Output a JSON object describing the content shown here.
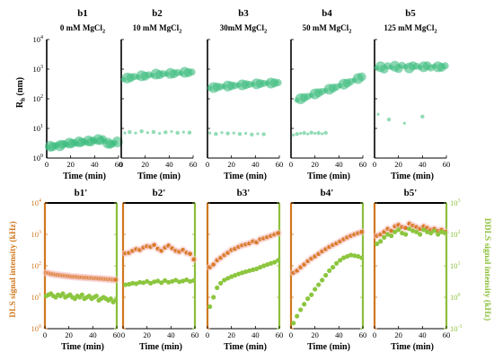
{
  "figure": {
    "top_ylabel_main": "R",
    "top_ylabel_sub": "h",
    "top_ylabel_unit": " (nm)",
    "bottom_ylabel_left": "DLS signal intensity (kHz)",
    "bottom_ylabel_right": "DDLS signal intensity (kHz)",
    "xlabel": "Time (min)",
    "colors": {
      "rh_main": "#3dbd7f",
      "rh_minor": "#6fd09c",
      "dls": "#d87a28",
      "dls_halo": "#f7c9c9",
      "ddls": "#8cc63f",
      "axis_left_bottom": "#d0781f",
      "axis_right_bottom": "#8cbf3a"
    }
  },
  "chart_data": [
    {
      "type": "scatter",
      "id": "b1",
      "title": "b1",
      "subtitle": "0 mM MgCl",
      "subtitle_sub": "2",
      "ylog": true,
      "ylim": [
        1,
        10000
      ],
      "xlim": [
        0,
        60
      ],
      "xticks": [
        0,
        20,
        40,
        60
      ],
      "yticks": [
        "10",
        "10",
        "10",
        "10",
        "10"
      ],
      "ytick_exponents": [
        "0",
        "1",
        "2",
        "3",
        "4"
      ],
      "series": [
        {
          "role": "main",
          "x": [
            1,
            3,
            5,
            7,
            9,
            11,
            13,
            15,
            17,
            19,
            21,
            23,
            25,
            27,
            29,
            31,
            33,
            35,
            37,
            39,
            41,
            43,
            45,
            47,
            49,
            51,
            53,
            55,
            57,
            59
          ],
          "y": [
            2.3,
            2.5,
            2.4,
            2.6,
            2.8,
            2.6,
            2.9,
            3.0,
            2.8,
            3.2,
            3.1,
            3.3,
            3.0,
            3.5,
            3.4,
            3.6,
            3.3,
            3.8,
            3.5,
            4.0,
            3.7,
            4.2,
            3.9,
            4.5,
            3.6,
            3.2,
            2.9,
            3.0,
            3.3,
            3.5
          ]
        }
      ]
    },
    {
      "type": "scatter",
      "id": "b2",
      "title": "b2",
      "subtitle": "10 mM MgCl",
      "subtitle_sub": "2",
      "ylog": true,
      "ylim": [
        1,
        10000
      ],
      "xlim": [
        0,
        60
      ],
      "xticks": [
        0,
        20,
        40,
        60
      ],
      "series": [
        {
          "role": "main",
          "x": [
            2,
            5,
            8,
            11,
            14,
            17,
            20,
            23,
            26,
            29,
            32,
            35,
            38,
            41,
            44,
            47,
            50,
            53,
            56,
            59
          ],
          "y": [
            450,
            500,
            520,
            560,
            540,
            600,
            580,
            640,
            620,
            680,
            650,
            700,
            690,
            720,
            700,
            760,
            730,
            780,
            760,
            800
          ]
        },
        {
          "role": "minor",
          "x": [
            3,
            7,
            12,
            17,
            22,
            27,
            32,
            37,
            42,
            47,
            52,
            57
          ],
          "y": [
            7,
            7.5,
            7,
            8,
            7.2,
            7.6,
            6.8,
            7.4,
            7.8,
            7.1,
            7.5,
            7.2
          ]
        }
      ]
    },
    {
      "type": "scatter",
      "id": "b3",
      "title": "b3",
      "subtitle": "30mM MgCl",
      "subtitle_sub": "2",
      "ylog": true,
      "ylim": [
        1,
        10000
      ],
      "xlim": [
        0,
        60
      ],
      "xticks": [
        0,
        20,
        40,
        60
      ],
      "series": [
        {
          "role": "main",
          "x": [
            2,
            5,
            8,
            11,
            14,
            17,
            20,
            23,
            26,
            29,
            32,
            35,
            38,
            41,
            44,
            47,
            50,
            53,
            56,
            59
          ],
          "y": [
            230,
            240,
            250,
            255,
            260,
            270,
            275,
            280,
            290,
            295,
            300,
            305,
            310,
            320,
            325,
            330,
            335,
            340,
            345,
            350
          ]
        },
        {
          "role": "minor",
          "x": [
            2,
            7,
            12,
            17,
            22,
            27,
            32,
            37,
            42,
            47
          ],
          "y": [
            7,
            6.5,
            7.2,
            6.8,
            7,
            6.5,
            6.8,
            6.2,
            6.6,
            6.4
          ]
        }
      ]
    },
    {
      "type": "scatter",
      "id": "b4",
      "title": "b4",
      "subtitle": "50 mM MgCl",
      "subtitle_sub": "2",
      "ylog": true,
      "ylim": [
        1,
        10000
      ],
      "xlim": [
        0,
        60
      ],
      "xticks": [
        0,
        20,
        40,
        60
      ],
      "series": [
        {
          "role": "main",
          "x": [
            5,
            8,
            11,
            14,
            17,
            20,
            23,
            26,
            29,
            32,
            35,
            38,
            41,
            44,
            47,
            50,
            53,
            56,
            59
          ],
          "y": [
            90,
            100,
            110,
            120,
            130,
            145,
            160,
            175,
            190,
            210,
            230,
            250,
            280,
            310,
            340,
            380,
            420,
            480,
            550
          ]
        },
        {
          "role": "minor",
          "x": [
            2,
            5,
            8,
            11,
            14,
            17,
            20,
            23,
            26,
            29
          ],
          "y": [
            6,
            6.5,
            6.8,
            7,
            6.5,
            7.2,
            6.8,
            7,
            6.6,
            7.1
          ]
        }
      ]
    },
    {
      "type": "scatter",
      "id": "b5",
      "title": "b5",
      "subtitle": "125 mM MgCl",
      "subtitle_sub": "2",
      "ylog": true,
      "ylim": [
        1,
        10000
      ],
      "xlim": [
        0,
        60
      ],
      "xticks": [
        0,
        20,
        40,
        60
      ],
      "series": [
        {
          "role": "main",
          "x": [
            2,
            5,
            8,
            11,
            14,
            17,
            20,
            23,
            26,
            29,
            32,
            35,
            38,
            41,
            44,
            47,
            50,
            53,
            56,
            59
          ],
          "y": [
            1100,
            1200,
            1000,
            1300,
            1150,
            1250,
            1050,
            1350,
            1200,
            1100,
            1300,
            1250,
            1150,
            1200,
            1300,
            1100,
            1250,
            1200,
            1150,
            1300
          ]
        },
        {
          "role": "minor",
          "x": [
            3,
            12,
            25,
            40
          ],
          "y": [
            30,
            20,
            15,
            25
          ]
        }
      ]
    },
    {
      "type": "scatter",
      "id": "b1p",
      "title": "b1'",
      "ylog": true,
      "ylim": [
        1,
        10000
      ],
      "y2lim": [
        0.1,
        1000
      ],
      "xlim": [
        0,
        60
      ],
      "xticks": [
        0,
        20,
        40,
        60
      ],
      "series": [
        {
          "name": "DLS",
          "axis": "left",
          "x": [
            1,
            3,
            5,
            7,
            9,
            11,
            13,
            15,
            17,
            19,
            21,
            23,
            25,
            27,
            29,
            31,
            33,
            35,
            37,
            39,
            41,
            43,
            45,
            47,
            49,
            51,
            53,
            55,
            57,
            59
          ],
          "y": [
            60,
            58,
            55,
            54,
            52,
            51,
            50,
            49,
            48,
            47,
            46,
            45,
            45,
            44,
            43,
            43,
            42,
            42,
            41,
            41,
            40,
            40,
            39,
            39,
            38,
            38,
            37,
            37,
            36,
            36
          ]
        },
        {
          "name": "DDLS",
          "axis": "right",
          "x": [
            1,
            3,
            5,
            7,
            9,
            11,
            13,
            15,
            17,
            19,
            21,
            23,
            25,
            27,
            29,
            31,
            33,
            35,
            37,
            39,
            41,
            43,
            45,
            47,
            49,
            51,
            53,
            55,
            57,
            59
          ],
          "y": [
            1.1,
            1.2,
            1.3,
            1.1,
            1.0,
            1.2,
            1.1,
            1.3,
            1.0,
            1.1,
            1.2,
            1.0,
            0.9,
            1.1,
            1.0,
            1.2,
            0.9,
            1.0,
            1.1,
            0.9,
            1.0,
            1.1,
            0.8,
            0.9,
            1.0,
            0.9,
            0.8,
            0.9,
            0.7,
            0.8
          ]
        }
      ]
    },
    {
      "type": "scatter",
      "id": "b2p",
      "title": "b2'",
      "ylog": true,
      "ylim": [
        1,
        10000
      ],
      "y2lim": [
        0.1,
        1000
      ],
      "xlim": [
        0,
        60
      ],
      "xticks": [
        0,
        20,
        40,
        60
      ],
      "series": [
        {
          "name": "DLS",
          "axis": "left",
          "x": [
            2,
            5,
            8,
            11,
            14,
            17,
            20,
            23,
            26,
            29,
            32,
            35,
            38,
            41,
            44,
            47,
            50,
            53,
            56,
            59
          ],
          "y": [
            250,
            260,
            300,
            340,
            320,
            380,
            420,
            400,
            460,
            350,
            300,
            380,
            440,
            360,
            300,
            280,
            320,
            260,
            240,
            160
          ]
        },
        {
          "name": "DDLS",
          "axis": "right",
          "x": [
            2,
            5,
            8,
            11,
            14,
            17,
            20,
            23,
            26,
            29,
            32,
            35,
            38,
            41,
            44,
            47,
            50,
            53,
            56,
            59
          ],
          "y": [
            2.5,
            2.6,
            2.8,
            2.7,
            3.0,
            2.9,
            3.2,
            2.8,
            3.1,
            3.3,
            2.9,
            3.4,
            3.0,
            3.2,
            3.5,
            3.1,
            3.3,
            3.6,
            3.2,
            3.4
          ]
        }
      ]
    },
    {
      "type": "scatter",
      "id": "b3p",
      "title": "b3'",
      "ylog": true,
      "ylim": [
        1,
        10000
      ],
      "y2lim": [
        0.1,
        1000
      ],
      "xlim": [
        0,
        60
      ],
      "xticks": [
        0,
        20,
        40,
        60
      ],
      "series": [
        {
          "name": "DLS",
          "axis": "left",
          "x": [
            2,
            5,
            8,
            11,
            14,
            17,
            20,
            23,
            26,
            29,
            32,
            35,
            38,
            41,
            44,
            47,
            50,
            53,
            56,
            59
          ],
          "y": [
            90,
            110,
            150,
            180,
            220,
            260,
            320,
            350,
            400,
            450,
            480,
            520,
            600,
            560,
            700,
            750,
            820,
            900,
            1000,
            1100
          ]
        },
        {
          "name": "DDLS",
          "axis": "right",
          "x": [
            2,
            5,
            8,
            11,
            14,
            17,
            20,
            23,
            26,
            29,
            32,
            35,
            38,
            41,
            44,
            47,
            50,
            53,
            56,
            59
          ],
          "y": [
            0.5,
            1.0,
            2.0,
            2.8,
            3.5,
            4.0,
            4.5,
            5.0,
            5.5,
            6.0,
            6.5,
            7.0,
            7.5,
            8.0,
            9.0,
            10,
            11,
            12,
            13,
            15
          ]
        }
      ]
    },
    {
      "type": "scatter",
      "id": "b4p",
      "title": "b4'",
      "ylog": true,
      "ylim": [
        1,
        10000
      ],
      "y2lim": [
        0.1,
        1000
      ],
      "xlim": [
        0,
        60
      ],
      "xticks": [
        0,
        20,
        40,
        60
      ],
      "series": [
        {
          "name": "DLS",
          "axis": "left",
          "x": [
            2,
            5,
            8,
            11,
            14,
            17,
            20,
            23,
            26,
            29,
            32,
            35,
            38,
            41,
            44,
            47,
            50,
            53,
            56,
            59
          ],
          "y": [
            60,
            70,
            90,
            110,
            140,
            170,
            200,
            240,
            290,
            340,
            400,
            460,
            520,
            600,
            700,
            800,
            900,
            1000,
            1100,
            1200
          ]
        },
        {
          "name": "DDLS",
          "axis": "right",
          "x": [
            2,
            5,
            8,
            11,
            14,
            17,
            20,
            23,
            26,
            29,
            32,
            35,
            38,
            41,
            44,
            47,
            50,
            53,
            56,
            59
          ],
          "y": [
            0.15,
            0.25,
            0.4,
            0.6,
            0.9,
            1.2,
            1.8,
            2.5,
            3.5,
            5,
            7,
            9,
            12,
            15,
            18,
            20,
            22,
            21,
            20,
            18
          ]
        }
      ]
    },
    {
      "type": "scatter",
      "id": "b5p",
      "title": "b5'",
      "ylog": true,
      "ylim": [
        1,
        10000
      ],
      "y2lim": [
        0.1,
        1000
      ],
      "xlim": [
        0,
        60
      ],
      "xticks": [
        0,
        20,
        40,
        60
      ],
      "series": [
        {
          "name": "DLS",
          "axis": "left",
          "x": [
            2,
            5,
            8,
            11,
            14,
            17,
            20,
            23,
            26,
            29,
            32,
            35,
            38,
            41,
            44,
            47,
            50,
            53,
            56,
            59
          ],
          "y": [
            900,
            1000,
            1200,
            1500,
            1300,
            1800,
            2000,
            1700,
            1600,
            2200,
            1900,
            1700,
            1500,
            1800,
            1600,
            1400,
            1500,
            1300,
            1400,
            1200
          ]
        },
        {
          "name": "DDLS",
          "axis": "right",
          "x": [
            2,
            5,
            8,
            11,
            14,
            17,
            20,
            23,
            26,
            29,
            32,
            35,
            38,
            41,
            44,
            47,
            50,
            53,
            56,
            59
          ],
          "y": [
            50,
            60,
            80,
            100,
            90,
            120,
            140,
            110,
            100,
            150,
            130,
            120,
            100,
            140,
            120,
            110,
            130,
            100,
            120,
            110
          ]
        }
      ]
    }
  ]
}
